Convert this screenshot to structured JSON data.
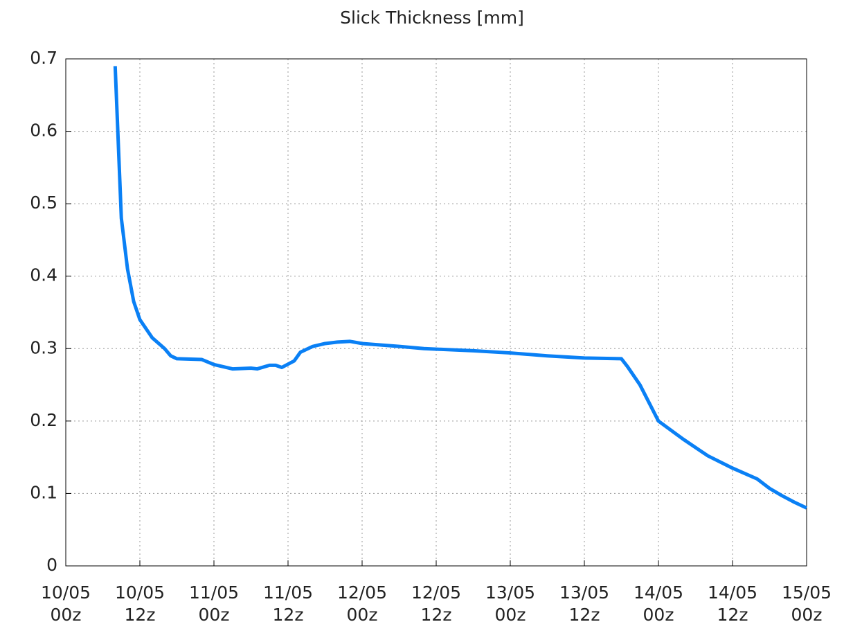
{
  "chart_data": {
    "type": "line",
    "title": "Slick Thickness [mm]",
    "x": [
      "10/05 08z",
      "10/05 09z",
      "10/05 10z",
      "10/05 11z",
      "10/05 12z",
      "10/05 14z",
      "10/05 16z",
      "10/05 17z",
      "10/05 18z",
      "10/05 22z",
      "11/05 00z",
      "11/05 03z",
      "11/05 06z",
      "11/05 07z",
      "11/05 09z",
      "11/05 10z",
      "11/05 11z",
      "11/05 13z",
      "11/05 14z",
      "11/05 16z",
      "11/05 18z",
      "11/05 20z",
      "11/05 22z",
      "12/05 00z",
      "12/05 06z",
      "12/05 10z",
      "12/05 18z",
      "13/05 00z",
      "13/05 06z",
      "13/05 12z",
      "13/05 18z",
      "13/05 19z",
      "13/05 21z",
      "14/05 00z",
      "14/05 04z",
      "14/05 08z",
      "14/05 12z",
      "14/05 16z",
      "14/05 18z",
      "14/05 20z",
      "14/05 22z",
      "15/05 00z"
    ],
    "series": [
      {
        "name": "Slick Thickness",
        "color": "#0a80f5",
        "values": [
          0.69,
          0.48,
          0.41,
          0.365,
          0.34,
          0.315,
          0.3,
          0.29,
          0.286,
          0.285,
          0.278,
          0.272,
          0.273,
          0.272,
          0.277,
          0.277,
          0.274,
          0.283,
          0.295,
          0.303,
          0.307,
          0.309,
          0.31,
          0.307,
          0.303,
          0.3,
          0.297,
          0.294,
          0.29,
          0.287,
          0.286,
          0.275,
          0.25,
          0.2,
          0.175,
          0.152,
          0.135,
          0.12,
          0.107,
          0.097,
          0.088,
          0.08
        ]
      }
    ],
    "xlim": [
      "10/05 00z",
      "15/05 00z"
    ],
    "xticks": [
      "10/05 00z",
      "10/05 12z",
      "11/05 00z",
      "11/05 12z",
      "12/05 00z",
      "12/05 12z",
      "13/05 00z",
      "13/05 12z",
      "14/05 00z",
      "14/05 12z",
      "15/05 00z"
    ],
    "ylim": [
      0,
      0.7
    ],
    "yticks": [
      0,
      0.1,
      0.2,
      0.3,
      0.4,
      0.5,
      0.6,
      0.7
    ],
    "grid": true
  }
}
